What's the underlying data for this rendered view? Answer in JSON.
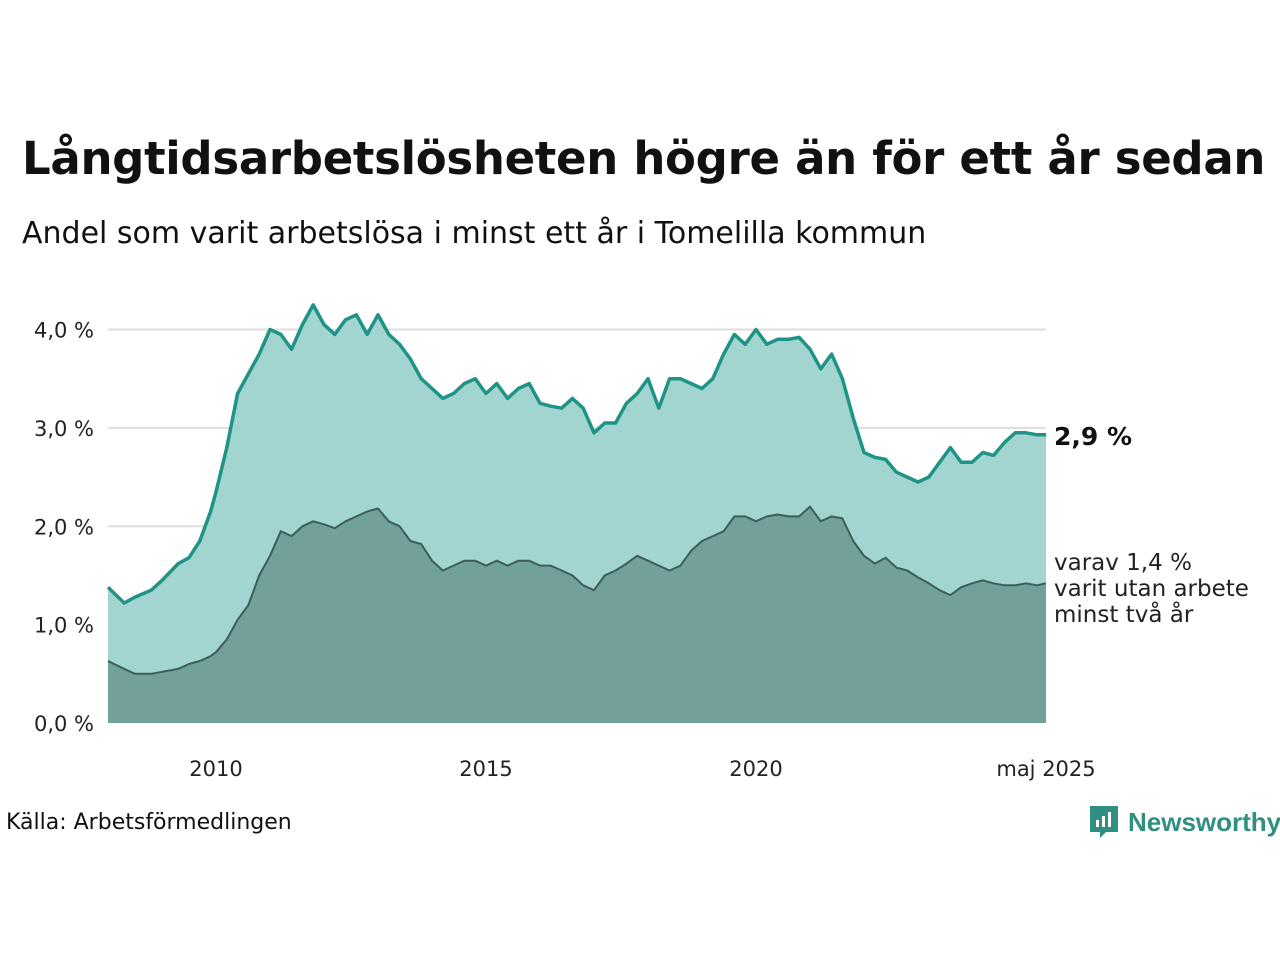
{
  "title": "Långtidsarbetslösheten högre än för ett år sedan",
  "subtitle": "Andel som varit arbetslösa i minst ett år i Tomelilla kommun",
  "source": "Källa: Arbetsförmedlingen",
  "brand": "Newsworthy",
  "colors": {
    "series1_line": "#1f9486",
    "series1_fill": "#a3d5d0",
    "series2_line": "#3d5e58",
    "series2_fill": "#72a09a",
    "grid": "#dddddd"
  },
  "chart_data": {
    "type": "area",
    "x_unit": "year (decimal)",
    "xlim": [
      2008.0,
      2025.37
    ],
    "ylim": [
      0,
      4.3
    ],
    "yticks": [
      0,
      1,
      2,
      3,
      4
    ],
    "ytick_labels": [
      "0,0 %",
      "1,0 %",
      "2,0 %",
      "3,0 %",
      "4,0 %"
    ],
    "xticks": [
      2010,
      2015,
      2020,
      2025.37
    ],
    "xtick_labels": [
      "2010",
      "2015",
      "2020",
      "maj 2025"
    ],
    "grid": "horizontal",
    "end_labels": {
      "series1": "2,9 %",
      "series2": [
        "varav 1,4 %",
        "varit utan arbete",
        "minst två år"
      ]
    },
    "series": [
      {
        "key": "series1",
        "x": [
          2008.0,
          2008.3,
          2008.5,
          2008.8,
          2009.0,
          2009.3,
          2009.5,
          2009.7,
          2009.9,
          2010.0,
          2010.2,
          2010.4,
          2010.6,
          2010.8,
          2011.0,
          2011.2,
          2011.4,
          2011.6,
          2011.8,
          2012.0,
          2012.2,
          2012.4,
          2012.6,
          2012.8,
          2013.0,
          2013.2,
          2013.4,
          2013.6,
          2013.8,
          2014.0,
          2014.2,
          2014.4,
          2014.6,
          2014.8,
          2015.0,
          2015.2,
          2015.4,
          2015.6,
          2015.8,
          2016.0,
          2016.2,
          2016.4,
          2016.6,
          2016.8,
          2017.0,
          2017.2,
          2017.4,
          2017.6,
          2017.8,
          2018.0,
          2018.2,
          2018.4,
          2018.6,
          2018.8,
          2019.0,
          2019.2,
          2019.4,
          2019.6,
          2019.8,
          2020.0,
          2020.2,
          2020.4,
          2020.6,
          2020.8,
          2021.0,
          2021.2,
          2021.4,
          2021.6,
          2021.8,
          2022.0,
          2022.2,
          2022.4,
          2022.6,
          2022.8,
          2023.0,
          2023.2,
          2023.4,
          2023.6,
          2023.8,
          2024.0,
          2024.2,
          2024.4,
          2024.6,
          2024.8,
          2025.0,
          2025.2,
          2025.37
        ],
        "values": [
          1.38,
          1.22,
          1.28,
          1.35,
          1.45,
          1.62,
          1.68,
          1.85,
          2.15,
          2.35,
          2.8,
          3.35,
          3.55,
          3.75,
          4.0,
          3.95,
          3.8,
          4.05,
          4.25,
          4.05,
          3.95,
          4.1,
          4.15,
          3.95,
          4.15,
          3.95,
          3.85,
          3.7,
          3.5,
          3.4,
          3.3,
          3.35,
          3.45,
          3.5,
          3.35,
          3.45,
          3.3,
          3.4,
          3.45,
          3.25,
          3.22,
          3.2,
          3.3,
          3.2,
          2.95,
          3.05,
          3.05,
          3.25,
          3.35,
          3.5,
          3.2,
          3.5,
          3.5,
          3.45,
          3.4,
          3.5,
          3.75,
          3.95,
          3.85,
          4.0,
          3.85,
          3.9,
          3.9,
          3.92,
          3.8,
          3.6,
          3.75,
          3.5,
          3.1,
          2.75,
          2.7,
          2.68,
          2.55,
          2.5,
          2.45,
          2.5,
          2.65,
          2.8,
          2.65,
          2.65,
          2.75,
          2.72,
          2.85,
          2.95,
          2.95,
          2.93,
          2.93
        ]
      },
      {
        "key": "series2",
        "x": [
          2008.0,
          2008.3,
          2008.5,
          2008.8,
          2009.0,
          2009.3,
          2009.5,
          2009.7,
          2009.9,
          2010.0,
          2010.2,
          2010.4,
          2010.6,
          2010.8,
          2011.0,
          2011.2,
          2011.4,
          2011.6,
          2011.8,
          2012.0,
          2012.2,
          2012.4,
          2012.6,
          2012.8,
          2013.0,
          2013.2,
          2013.4,
          2013.6,
          2013.8,
          2014.0,
          2014.2,
          2014.4,
          2014.6,
          2014.8,
          2015.0,
          2015.2,
          2015.4,
          2015.6,
          2015.8,
          2016.0,
          2016.2,
          2016.4,
          2016.6,
          2016.8,
          2017.0,
          2017.2,
          2017.4,
          2017.6,
          2017.8,
          2018.0,
          2018.2,
          2018.4,
          2018.6,
          2018.8,
          2019.0,
          2019.2,
          2019.4,
          2019.6,
          2019.8,
          2020.0,
          2020.2,
          2020.4,
          2020.6,
          2020.8,
          2021.0,
          2021.2,
          2021.4,
          2021.6,
          2021.8,
          2022.0,
          2022.2,
          2022.4,
          2022.6,
          2022.8,
          2023.0,
          2023.2,
          2023.4,
          2023.6,
          2023.8,
          2024.0,
          2024.2,
          2024.4,
          2024.6,
          2024.8,
          2025.0,
          2025.2,
          2025.37
        ],
        "values": [
          0.63,
          0.55,
          0.5,
          0.5,
          0.52,
          0.55,
          0.6,
          0.63,
          0.68,
          0.72,
          0.85,
          1.05,
          1.2,
          1.5,
          1.7,
          1.95,
          1.9,
          2.0,
          2.05,
          2.02,
          1.98,
          2.05,
          2.1,
          2.15,
          2.18,
          2.05,
          2.0,
          1.85,
          1.82,
          1.65,
          1.55,
          1.6,
          1.65,
          1.65,
          1.6,
          1.65,
          1.6,
          1.65,
          1.65,
          1.6,
          1.6,
          1.55,
          1.5,
          1.4,
          1.35,
          1.5,
          1.55,
          1.62,
          1.7,
          1.65,
          1.6,
          1.55,
          1.6,
          1.75,
          1.85,
          1.9,
          1.95,
          2.1,
          2.1,
          2.05,
          2.1,
          2.12,
          2.1,
          2.1,
          2.2,
          2.05,
          2.1,
          2.08,
          1.85,
          1.7,
          1.62,
          1.68,
          1.58,
          1.55,
          1.48,
          1.42,
          1.35,
          1.3,
          1.38,
          1.42,
          1.45,
          1.42,
          1.4,
          1.4,
          1.42,
          1.4,
          1.42
        ]
      }
    ]
  }
}
